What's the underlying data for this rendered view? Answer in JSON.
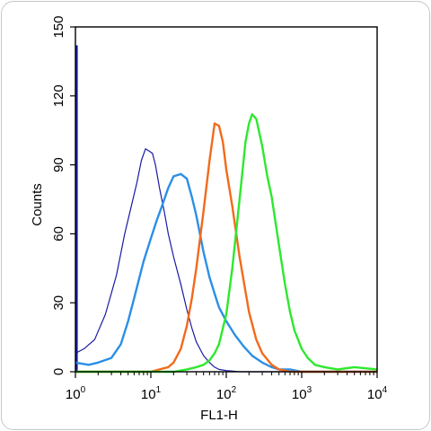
{
  "chart_data": {
    "type": "line",
    "title": "",
    "xlabel": "FL1-H",
    "ylabel": "Counts",
    "xscale": "log",
    "xlim": [
      1,
      10000
    ],
    "ylim": [
      0,
      150
    ],
    "x_ticks": [
      {
        "base": "10",
        "exp": "0",
        "value": 1
      },
      {
        "base": "10",
        "exp": "1",
        "value": 10
      },
      {
        "base": "10",
        "exp": "2",
        "value": 100
      },
      {
        "base": "10",
        "exp": "3",
        "value": 1000
      },
      {
        "base": "10",
        "exp": "4",
        "value": 10000
      }
    ],
    "y_ticks": [
      "0",
      "30",
      "60",
      "90",
      "120",
      "150"
    ],
    "grid": false,
    "legend": "none",
    "series": [
      {
        "color": "#1a1aa6",
        "line_width": 1.2,
        "edge_spike": {
          "x": 1,
          "y": 142
        },
        "x": [
          1.0,
          1.3,
          1.8,
          2.5,
          3.5,
          4.5,
          5.5,
          6.5,
          7.5,
          8.5,
          9.5,
          10.5,
          11.5,
          13,
          15,
          17,
          20,
          25,
          30,
          35,
          40,
          50,
          60,
          70,
          80,
          100,
          150,
          300,
          1000,
          10000
        ],
        "y": [
          8,
          10,
          14,
          25,
          42,
          60,
          72,
          82,
          92,
          97,
          96,
          95,
          90,
          80,
          70,
          60,
          50,
          38,
          27,
          19,
          13,
          7,
          4,
          2,
          1,
          0.5,
          0,
          0,
          0,
          0
        ]
      },
      {
        "color": "#2b8fe6",
        "line_width": 2.4,
        "x": [
          1,
          1.5,
          2,
          3,
          4,
          5,
          6,
          8,
          10,
          12,
          14,
          17,
          20,
          25,
          30,
          35,
          40,
          50,
          60,
          70,
          80,
          100,
          130,
          170,
          220,
          300,
          400,
          500,
          700,
          1000,
          2000,
          10000
        ],
        "y": [
          4,
          3,
          4,
          6,
          12,
          22,
          32,
          48,
          58,
          66,
          72,
          80,
          85,
          86,
          84,
          76,
          68,
          52,
          41,
          34,
          28,
          22,
          16,
          11,
          7,
          4,
          2,
          1,
          1,
          0,
          0,
          0
        ]
      },
      {
        "color": "#f26a1b",
        "line_width": 2.4,
        "x": [
          1,
          10,
          13,
          17,
          20,
          25,
          30,
          35,
          40,
          50,
          60,
          70,
          80,
          90,
          100,
          120,
          150,
          200,
          250,
          300,
          400,
          500,
          700,
          1000,
          10000
        ],
        "y": [
          0,
          0,
          1,
          2,
          4,
          10,
          20,
          32,
          45,
          70,
          92,
          108,
          107,
          100,
          88,
          72,
          50,
          26,
          14,
          8,
          3,
          1,
          0,
          0,
          0
        ]
      },
      {
        "color": "#2ee82e",
        "line_width": 2.4,
        "x": [
          1,
          20,
          30,
          40,
          50,
          60,
          70,
          80,
          100,
          120,
          150,
          180,
          200,
          220,
          250,
          300,
          350,
          400,
          500,
          600,
          700,
          800,
          1000,
          1200,
          1500,
          2000,
          3000,
          5000,
          10000
        ],
        "y": [
          0,
          0,
          1,
          2,
          3,
          5,
          8,
          12,
          25,
          45,
          75,
          100,
          108,
          112,
          110,
          98,
          85,
          76,
          55,
          38,
          26,
          18,
          10,
          6,
          3,
          2,
          1,
          2,
          1
        ]
      }
    ]
  }
}
